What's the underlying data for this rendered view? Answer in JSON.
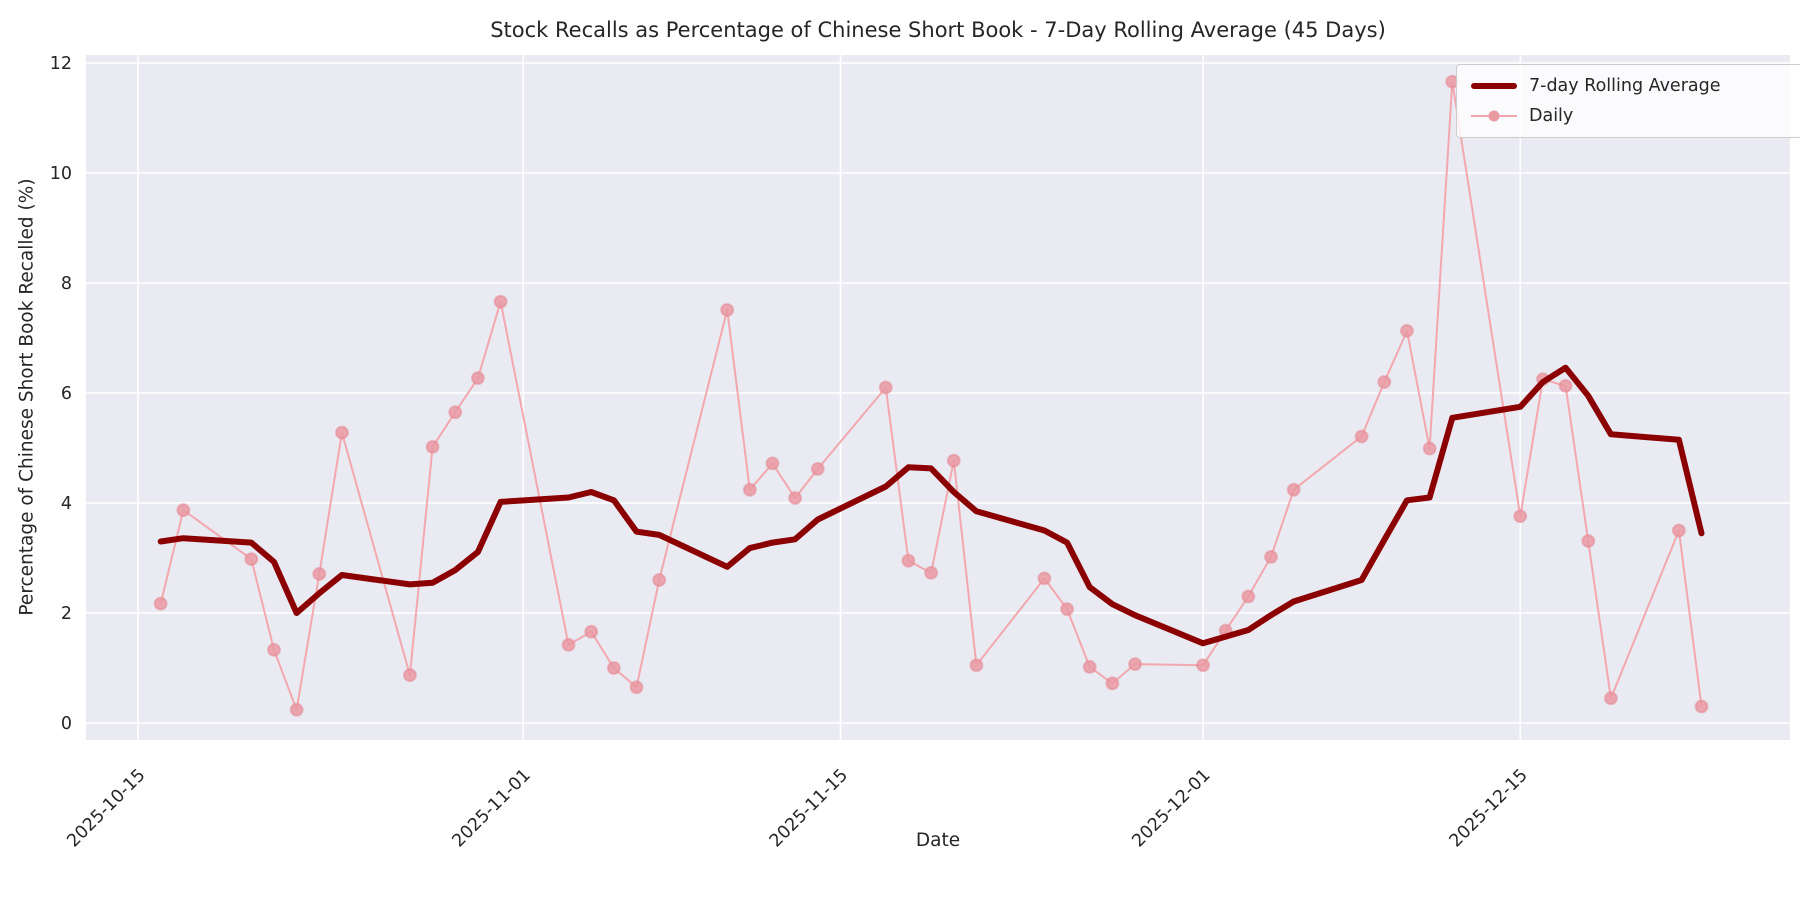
{
  "chart_data": {
    "type": "line",
    "title": "Stock Recalls as Percentage of Chinese Short Book - 7-Day Rolling Average (45 Days)",
    "xlabel": "Date",
    "ylabel": "Percentage of Chinese Short Book Recalled (%)",
    "ylim": [
      0,
      12
    ],
    "yticks": [
      0,
      2,
      4,
      6,
      8,
      10,
      12
    ],
    "xticks": [
      "2025-10-15",
      "2025-11-01",
      "2025-11-15",
      "2025-12-01",
      "2025-12-15"
    ],
    "x_tick_rotation_deg": 45,
    "grid": true,
    "background_color": "#eaeaf2",
    "gridline_color": "#ffffff",
    "legend_position": "upper right",
    "x": [
      "2025-10-16",
      "2025-10-17",
      "2025-10-20",
      "2025-10-21",
      "2025-10-22",
      "2025-10-23",
      "2025-10-24",
      "2025-10-27",
      "2025-10-28",
      "2025-10-29",
      "2025-10-30",
      "2025-10-31",
      "2025-11-03",
      "2025-11-04",
      "2025-11-05",
      "2025-11-06",
      "2025-11-07",
      "2025-11-10",
      "2025-11-11",
      "2025-11-12",
      "2025-11-13",
      "2025-11-14",
      "2025-11-17",
      "2025-11-18",
      "2025-11-19",
      "2025-11-20",
      "2025-11-21",
      "2025-11-24",
      "2025-11-25",
      "2025-11-26",
      "2025-11-27",
      "2025-11-28",
      "2025-12-01",
      "2025-12-02",
      "2025-12-03",
      "2025-12-04",
      "2025-12-05",
      "2025-12-08",
      "2025-12-09",
      "2025-12-10",
      "2025-12-11",
      "2025-12-12",
      "2025-12-15",
      "2025-12-16",
      "2025-12-17",
      "2025-12-18",
      "2025-12-19",
      "2025-12-22",
      "2025-12-23"
    ],
    "series": [
      {
        "name": "7-day Rolling Average",
        "color": "#8b0000",
        "line_width": 6,
        "marker": false,
        "values": [
          3.3,
          3.36,
          3.28,
          2.93,
          2.0,
          2.36,
          2.69,
          2.52,
          2.55,
          2.78,
          3.11,
          4.02,
          4.1,
          4.2,
          4.05,
          3.48,
          3.42,
          2.84,
          3.18,
          3.28,
          3.34,
          3.7,
          4.3,
          4.65,
          4.63,
          4.2,
          3.85,
          3.5,
          3.28,
          2.47,
          2.16,
          1.96,
          1.45,
          1.57,
          1.69,
          1.96,
          2.21,
          2.6,
          3.33,
          4.05,
          4.1,
          5.55,
          5.75,
          6.2,
          6.46,
          5.95,
          5.25,
          5.15,
          3.45
        ]
      },
      {
        "name": "Daily",
        "color": "#f2a4aa",
        "marker_color": "#ea99a2",
        "line_width": 2,
        "marker": true,
        "values": [
          2.17,
          3.87,
          2.98,
          1.33,
          0.24,
          2.71,
          5.28,
          0.87,
          5.02,
          5.65,
          6.27,
          7.66,
          1.42,
          1.66,
          1.0,
          0.65,
          2.6,
          7.51,
          4.24,
          4.72,
          4.09,
          4.62,
          6.1,
          2.95,
          2.73,
          4.77,
          1.05,
          2.63,
          2.07,
          1.02,
          0.72,
          1.07,
          1.05,
          1.68,
          2.3,
          3.02,
          4.24,
          5.21,
          6.2,
          7.13,
          4.99,
          11.66,
          3.76,
          6.25,
          6.13,
          3.31,
          0.45,
          3.5,
          0.3
        ]
      }
    ]
  }
}
